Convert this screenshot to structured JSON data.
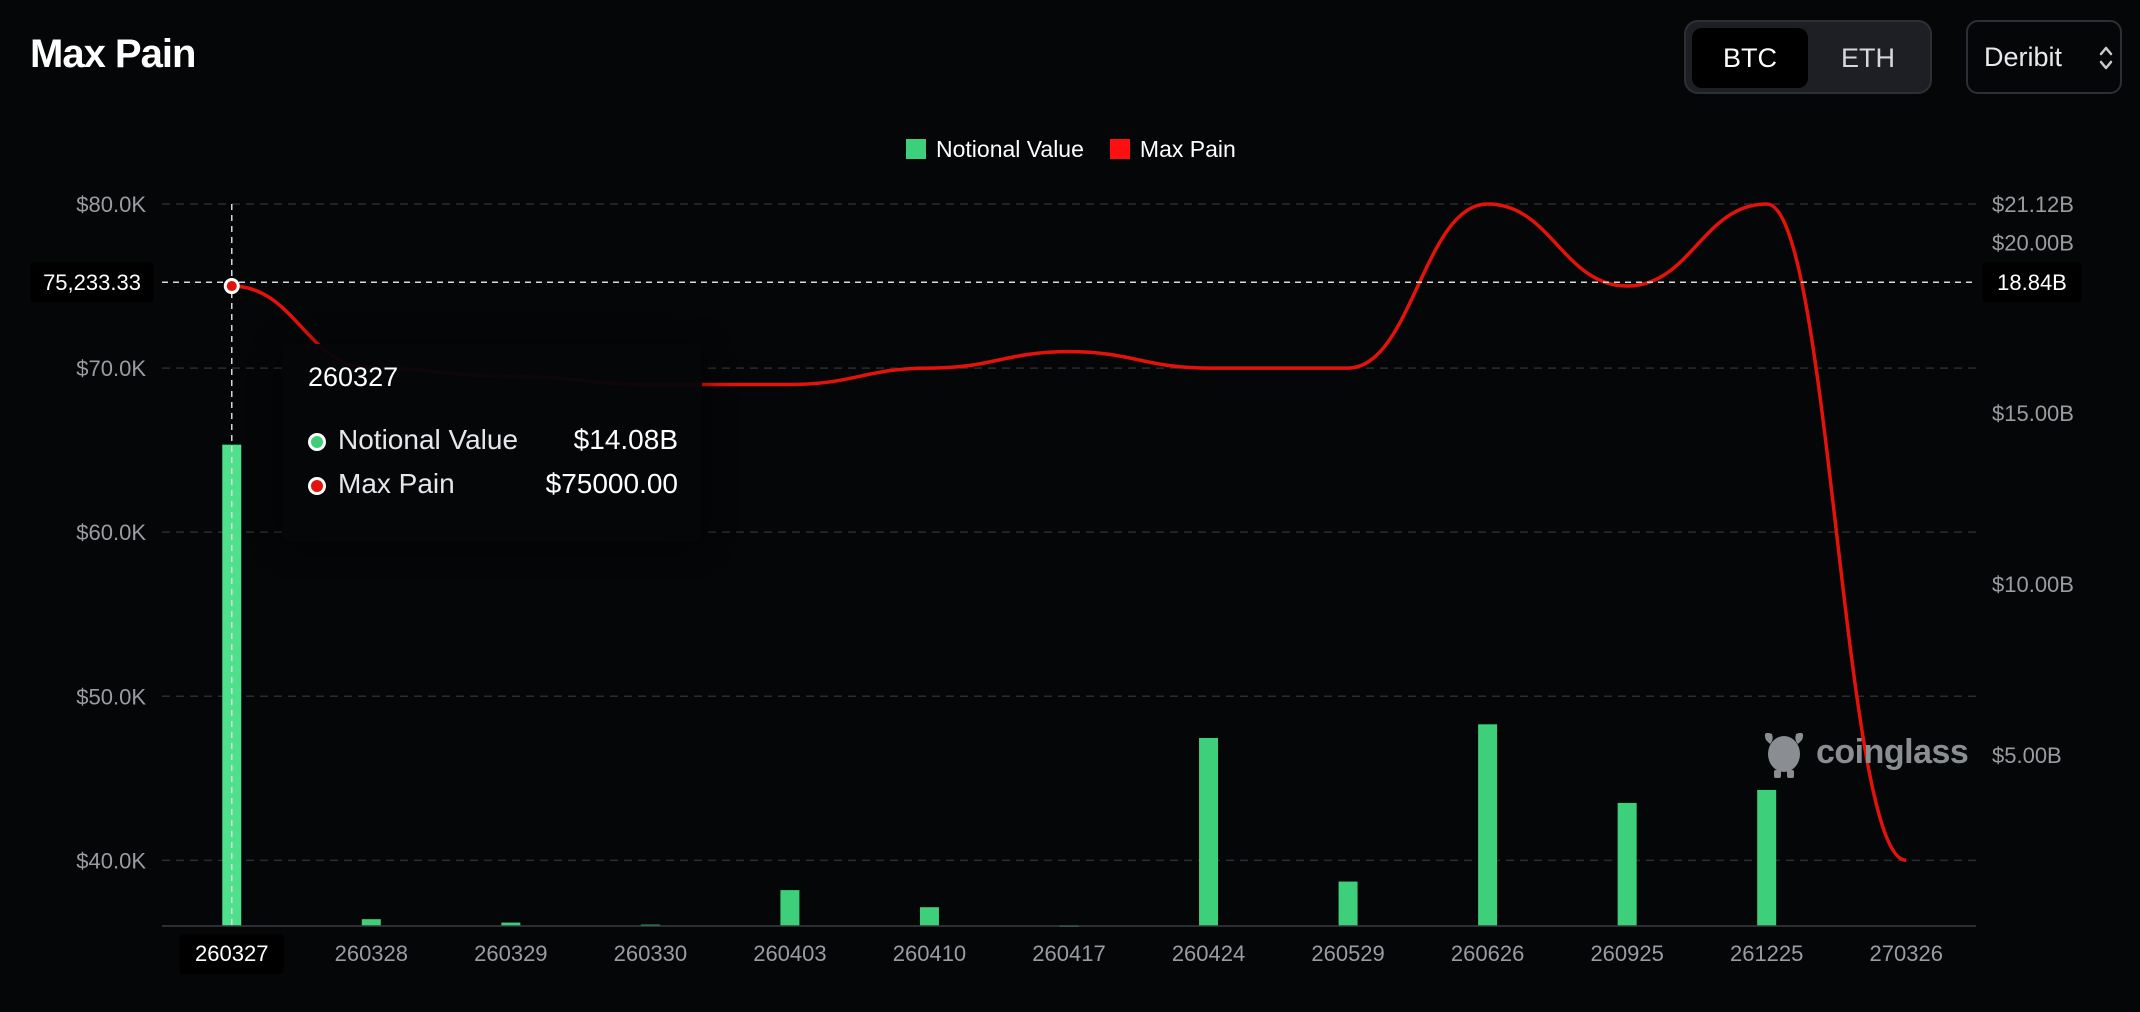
{
  "header": {
    "title": "Max Pain",
    "assets": [
      "BTC",
      "ETH"
    ],
    "active_asset": "BTC",
    "exchange": "Deribit"
  },
  "colors": {
    "background": "#050608",
    "bar": "#3ecf7a",
    "bar_highlight": "#4fe08c",
    "line": "#e3120b",
    "grid": "#2a2c31",
    "axis_text": "#9a9ca1"
  },
  "chart_data": {
    "type": "bar+line",
    "categories": [
      "260327",
      "260328",
      "260329",
      "260330",
      "260403",
      "260410",
      "260417",
      "260424",
      "260529",
      "260626",
      "260925",
      "261225",
      "270326"
    ],
    "series": [
      {
        "name": "Notional Value",
        "type": "bar",
        "axis": "right",
        "unit": "B USD",
        "values": [
          14.08,
          0.2,
          0.1,
          0.04,
          1.05,
          0.55,
          0.02,
          5.5,
          1.3,
          5.9,
          3.6,
          3.98,
          0
        ]
      },
      {
        "name": "Max Pain",
        "type": "line",
        "axis": "left",
        "unit": "USD",
        "values": [
          75000,
          70000,
          69500,
          69000,
          69000,
          70000,
          71000,
          70000,
          70000,
          80000,
          75000,
          80000,
          40000
        ]
      }
    ],
    "y_left": {
      "ticks": [
        "$40.0K",
        "$50.0K",
        "$60.0K",
        "$70.0K",
        "$80.0K"
      ],
      "tick_values": [
        40000,
        50000,
        60000,
        70000,
        80000
      ],
      "range": [
        36000,
        80000
      ]
    },
    "y_right": {
      "ticks": [
        "$5.00B",
        "$10.00B",
        "$15.00B",
        "$20.00B",
        "$21.12B"
      ],
      "tick_values": [
        5,
        10,
        15,
        20,
        21.12
      ],
      "range": [
        0,
        21.12
      ]
    },
    "legend": {
      "items": [
        "Notional Value",
        "Max Pain"
      ],
      "position": "top-center"
    },
    "grid": true,
    "crosshair": {
      "category": "260327",
      "left_label": "75,233.33",
      "right_label": "18.84B"
    },
    "tooltip": {
      "title": "260327",
      "rows": [
        {
          "label": "Notional Value",
          "value": "$14.08B",
          "color": "#3ecf7a"
        },
        {
          "label": "Max Pain",
          "value": "$75000.00",
          "color": "#e3120b"
        }
      ]
    }
  },
  "watermark": {
    "text": "coinglass"
  }
}
